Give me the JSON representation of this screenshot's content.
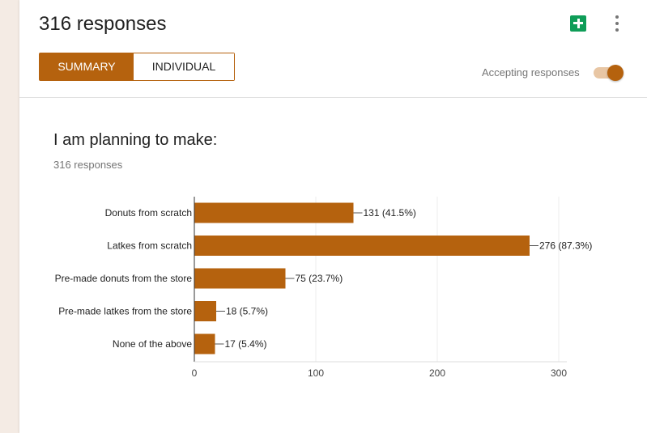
{
  "header": {
    "title": "316 responses",
    "tabs": [
      {
        "label": "SUMMARY",
        "active": true
      },
      {
        "label": "INDIVIDUAL",
        "active": false
      }
    ],
    "accepting_label": "Accepting responses",
    "accepting_on": true,
    "icons": {
      "sheets": "google-sheets-icon",
      "more": "more-vert-icon"
    }
  },
  "question": {
    "title": "I am planning to make:",
    "count_label": "316 responses"
  },
  "colors": {
    "accent": "#b5620e",
    "toggle_track": "#e8c6a4",
    "sheets": "#0f9d58"
  },
  "chart_data": {
    "type": "bar",
    "orientation": "horizontal",
    "categories": [
      "Donuts from scratch",
      "Latkes from scratch",
      "Pre-made donuts from the store",
      "Pre-made latkes from the store",
      "None of the above"
    ],
    "values": [
      131,
      276,
      75,
      18,
      17
    ],
    "data_labels": [
      "131 (41.5%)",
      "276 (87.3%)",
      "75 (23.7%)",
      "18 (5.7%)",
      "17 (5.4%)"
    ],
    "xlim": [
      0,
      300
    ],
    "xticks": [
      0,
      100,
      200,
      300
    ],
    "grid": true,
    "bar_color": "#b5620e"
  }
}
